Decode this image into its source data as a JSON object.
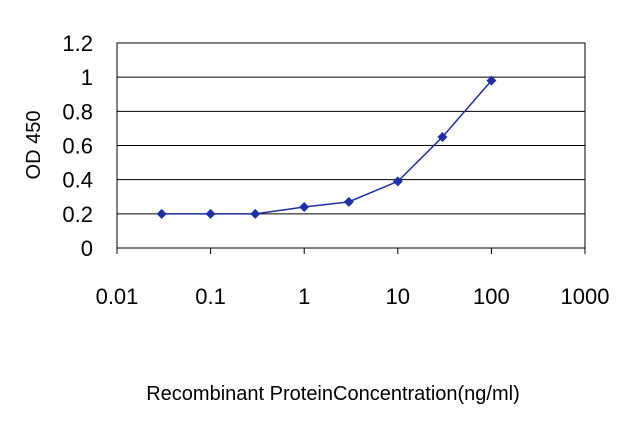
{
  "chart_data": {
    "type": "line",
    "title": "",
    "xlabel": "Recombinant ProteinConcentration(ng/ml)",
    "ylabel": "OD 450",
    "x_scale": "log",
    "xlim": [
      0.01,
      1000
    ],
    "ylim": [
      0,
      1.2
    ],
    "x_ticks": [
      "0.01",
      "0.1",
      "1",
      "10",
      "100",
      "1000"
    ],
    "y_ticks": [
      "0",
      "0.2",
      "0.4",
      "0.6",
      "0.8",
      "1",
      "1.2"
    ],
    "grid": "horizontal",
    "legend": "none",
    "series": [
      {
        "color": "#1f2fa8",
        "x": [
          0.03,
          0.1,
          0.3,
          1,
          3,
          10,
          30,
          100
        ],
        "y": [
          0.2,
          0.2,
          0.2,
          0.24,
          0.27,
          0.39,
          0.65,
          0.98
        ]
      }
    ]
  }
}
